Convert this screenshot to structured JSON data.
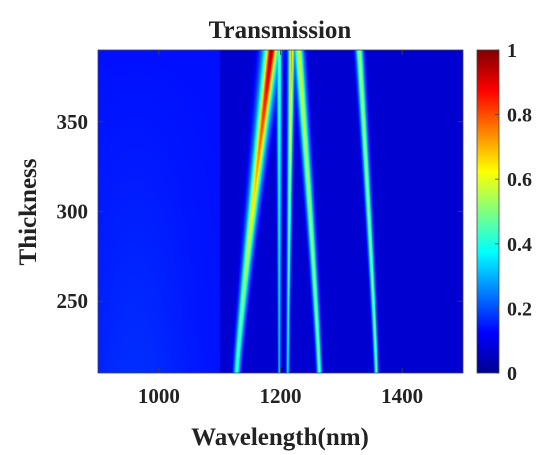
{
  "chart_data": {
    "type": "heatmap",
    "title": "Transmission",
    "xlabel": "Wavelength(nm)",
    "ylabel": "Thickness",
    "xlim": [
      900,
      1500
    ],
    "ylim": [
      210,
      390
    ],
    "x_ticks": [
      1000,
      1200,
      1400
    ],
    "y_ticks": [
      250,
      300,
      350
    ],
    "colorbar": {
      "range": [
        0,
        1
      ],
      "ticks": [
        0,
        0.2,
        0.4,
        0.6,
        0.8,
        1
      ],
      "tick_labels": [
        "0",
        "0.2",
        "0.4",
        "0.6",
        "0.8",
        "1"
      ],
      "colormap": "jet"
    },
    "features": [
      {
        "kind": "step",
        "x": 1100,
        "intensity_left": 0.14,
        "intensity_right": 0.08
      },
      {
        "kind": "resonance",
        "x_at_ymin": 1128,
        "x_at_ymax": 1185,
        "width_nm": 7,
        "peak_min": 0.45,
        "peak_max": 0.98
      },
      {
        "kind": "resonance",
        "x_at_ymin": 1198,
        "x_at_ymax": 1198,
        "width_nm": 3,
        "peak_min": 0.35,
        "peak_max": 0.5
      },
      {
        "kind": "resonance",
        "x_at_ymin": 1212,
        "x_at_ymax": 1218,
        "width_nm": 3,
        "peak_min": 0.4,
        "peak_max": 0.75
      },
      {
        "kind": "resonance",
        "x_at_ymin": 1264,
        "x_at_ymax": 1230,
        "width_nm": 5,
        "peak_min": 0.5,
        "peak_max": 0.6
      },
      {
        "kind": "resonance",
        "x_at_ymin": 1358,
        "x_at_ymax": 1330,
        "width_nm": 4,
        "peak_min": 0.5,
        "peak_max": 0.55
      }
    ]
  }
}
